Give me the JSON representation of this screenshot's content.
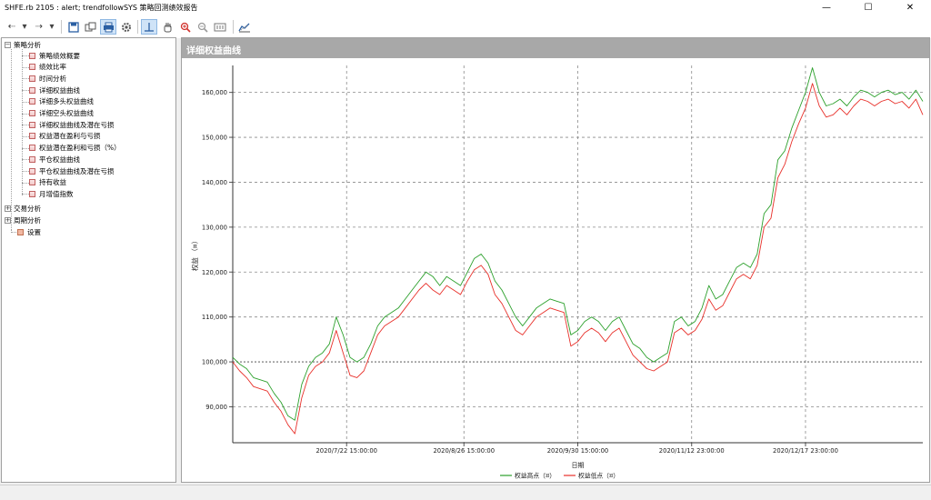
{
  "window": {
    "title": "SHFE.rb 2105 : alert; trendfollowSYS 策略回测绩效报告",
    "minimize_glyph": "—",
    "maximize_glyph": "☐",
    "close_glyph": "✕"
  },
  "toolbar": {
    "back_glyph": "⇠",
    "forward_glyph": "⇢",
    "dropdown_glyph": "▾"
  },
  "tree": {
    "root_label": "策略分析",
    "children": [
      {
        "label": "策略绩效概要"
      },
      {
        "label": "绩效比率"
      },
      {
        "label": "时间分析"
      },
      {
        "label": "详细权益曲线"
      },
      {
        "label": "详细多头权益曲线"
      },
      {
        "label": "详细空头权益曲线"
      },
      {
        "label": "详细权益曲线及潜在亏损"
      },
      {
        "label": "权益潜在盈利与亏损"
      },
      {
        "label": "权益潜在盈利和亏损（%）"
      },
      {
        "label": "平仓权益曲线"
      },
      {
        "label": "平仓权益曲线及潜在亏损"
      },
      {
        "label": "持有收益"
      },
      {
        "label": "月增值指数"
      }
    ],
    "trade_label": "交易分析",
    "period_label": "周期分析",
    "settings_label": "设置"
  },
  "panel": {
    "title": "详细权益曲线"
  },
  "chart_data": {
    "type": "line",
    "title": "",
    "xlabel": "日期",
    "ylabel": "权益 （¤）",
    "ylim": [
      82000,
      166000
    ],
    "yticks": [
      90000,
      100000,
      110000,
      120000,
      130000,
      140000,
      150000,
      160000
    ],
    "ytick_labels": [
      "90,000",
      "100,000",
      "110,000",
      "120,000",
      "130,000",
      "140,000",
      "150,000",
      "160,000"
    ],
    "xlim": [
      0,
      1
    ],
    "xtick_labels": [
      "2020/7/22 15:00:00",
      "2020/8/26 15:00:00",
      "2020/9/30 15:00:00",
      "2020/11/12 23:00:00",
      "2020/12/17 23:00:00"
    ],
    "grid": true,
    "legend": "bottom",
    "series": [
      {
        "name": "权益高点（¤）",
        "color": "#2ca02c",
        "points": [
          [
            0.0,
            101000
          ],
          [
            0.01,
            99500
          ],
          [
            0.02,
            98500
          ],
          [
            0.03,
            96500
          ],
          [
            0.04,
            96000
          ],
          [
            0.05,
            95500
          ],
          [
            0.06,
            93000
          ],
          [
            0.07,
            91000
          ],
          [
            0.08,
            88000
          ],
          [
            0.09,
            87000
          ],
          [
            0.1,
            95000
          ],
          [
            0.11,
            99000
          ],
          [
            0.12,
            101000
          ],
          [
            0.13,
            102000
          ],
          [
            0.14,
            104000
          ],
          [
            0.15,
            110000
          ],
          [
            0.16,
            106000
          ],
          [
            0.17,
            101000
          ],
          [
            0.18,
            100000
          ],
          [
            0.19,
            101000
          ],
          [
            0.2,
            104000
          ],
          [
            0.21,
            108000
          ],
          [
            0.22,
            110000
          ],
          [
            0.23,
            111000
          ],
          [
            0.24,
            112000
          ],
          [
            0.25,
            114000
          ],
          [
            0.26,
            116000
          ],
          [
            0.27,
            118000
          ],
          [
            0.28,
            120000
          ],
          [
            0.29,
            119000
          ],
          [
            0.3,
            117000
          ],
          [
            0.31,
            119000
          ],
          [
            0.32,
            118000
          ],
          [
            0.33,
            117000
          ],
          [
            0.34,
            120000
          ],
          [
            0.35,
            123000
          ],
          [
            0.36,
            124000
          ],
          [
            0.37,
            122000
          ],
          [
            0.38,
            118000
          ],
          [
            0.39,
            116000
          ],
          [
            0.4,
            113000
          ],
          [
            0.41,
            110000
          ],
          [
            0.42,
            108000
          ],
          [
            0.43,
            110000
          ],
          [
            0.44,
            112000
          ],
          [
            0.45,
            113000
          ],
          [
            0.46,
            114000
          ],
          [
            0.47,
            113500
          ],
          [
            0.48,
            113000
          ],
          [
            0.49,
            106000
          ],
          [
            0.5,
            107000
          ],
          [
            0.51,
            109000
          ],
          [
            0.52,
            110000
          ],
          [
            0.53,
            109000
          ],
          [
            0.54,
            107000
          ],
          [
            0.55,
            109000
          ],
          [
            0.56,
            110000
          ],
          [
            0.57,
            107000
          ],
          [
            0.58,
            104000
          ],
          [
            0.59,
            103000
          ],
          [
            0.6,
            101000
          ],
          [
            0.61,
            100000
          ],
          [
            0.62,
            101000
          ],
          [
            0.63,
            102000
          ],
          [
            0.64,
            109000
          ],
          [
            0.65,
            110000
          ],
          [
            0.66,
            108000
          ],
          [
            0.67,
            109000
          ],
          [
            0.68,
            112000
          ],
          [
            0.69,
            117000
          ],
          [
            0.7,
            114000
          ],
          [
            0.71,
            115000
          ],
          [
            0.72,
            118000
          ],
          [
            0.73,
            121000
          ],
          [
            0.74,
            122000
          ],
          [
            0.75,
            121000
          ],
          [
            0.76,
            124000
          ],
          [
            0.77,
            133000
          ],
          [
            0.78,
            135000
          ],
          [
            0.79,
            145000
          ],
          [
            0.8,
            147000
          ],
          [
            0.81,
            152000
          ],
          [
            0.82,
            156000
          ],
          [
            0.83,
            160000
          ],
          [
            0.84,
            165500
          ],
          [
            0.85,
            160000
          ],
          [
            0.86,
            157000
          ],
          [
            0.87,
            157500
          ],
          [
            0.88,
            158500
          ],
          [
            0.89,
            157000
          ],
          [
            0.9,
            159000
          ],
          [
            0.91,
            160500
          ],
          [
            0.92,
            160000
          ],
          [
            0.93,
            159000
          ],
          [
            0.94,
            160000
          ],
          [
            0.95,
            160500
          ],
          [
            0.96,
            159500
          ],
          [
            0.97,
            160000
          ],
          [
            0.98,
            158500
          ],
          [
            0.99,
            160500
          ],
          [
            1.0,
            158000
          ]
        ]
      },
      {
        "name": "权益低点（¤）",
        "color": "#e8302a",
        "points": [
          [
            0.0,
            100000
          ],
          [
            0.01,
            98000
          ],
          [
            0.02,
            96500
          ],
          [
            0.03,
            94500
          ],
          [
            0.04,
            94000
          ],
          [
            0.05,
            93500
          ],
          [
            0.06,
            91000
          ],
          [
            0.07,
            89000
          ],
          [
            0.08,
            86000
          ],
          [
            0.09,
            84000
          ],
          [
            0.1,
            92000
          ],
          [
            0.11,
            97000
          ],
          [
            0.12,
            99000
          ],
          [
            0.13,
            100000
          ],
          [
            0.14,
            102000
          ],
          [
            0.15,
            107000
          ],
          [
            0.16,
            102000
          ],
          [
            0.17,
            97000
          ],
          [
            0.18,
            96500
          ],
          [
            0.19,
            98000
          ],
          [
            0.2,
            102000
          ],
          [
            0.21,
            106000
          ],
          [
            0.22,
            108000
          ],
          [
            0.23,
            109000
          ],
          [
            0.24,
            110000
          ],
          [
            0.25,
            112000
          ],
          [
            0.26,
            114000
          ],
          [
            0.27,
            116000
          ],
          [
            0.28,
            117500
          ],
          [
            0.29,
            116000
          ],
          [
            0.3,
            115000
          ],
          [
            0.31,
            117000
          ],
          [
            0.32,
            116000
          ],
          [
            0.33,
            115000
          ],
          [
            0.34,
            118000
          ],
          [
            0.35,
            120500
          ],
          [
            0.36,
            121500
          ],
          [
            0.37,
            119500
          ],
          [
            0.38,
            115000
          ],
          [
            0.39,
            113000
          ],
          [
            0.4,
            110000
          ],
          [
            0.41,
            107000
          ],
          [
            0.42,
            106000
          ],
          [
            0.43,
            108000
          ],
          [
            0.44,
            110000
          ],
          [
            0.45,
            111000
          ],
          [
            0.46,
            112000
          ],
          [
            0.47,
            111500
          ],
          [
            0.48,
            111000
          ],
          [
            0.49,
            103500
          ],
          [
            0.5,
            104500
          ],
          [
            0.51,
            106500
          ],
          [
            0.52,
            107500
          ],
          [
            0.53,
            106500
          ],
          [
            0.54,
            104500
          ],
          [
            0.55,
            106500
          ],
          [
            0.56,
            107500
          ],
          [
            0.57,
            104500
          ],
          [
            0.58,
            101500
          ],
          [
            0.59,
            100000
          ],
          [
            0.6,
            98500
          ],
          [
            0.61,
            98000
          ],
          [
            0.62,
            99000
          ],
          [
            0.63,
            100000
          ],
          [
            0.64,
            106500
          ],
          [
            0.65,
            107500
          ],
          [
            0.66,
            106000
          ],
          [
            0.67,
            107000
          ],
          [
            0.68,
            109500
          ],
          [
            0.69,
            114000
          ],
          [
            0.7,
            111500
          ],
          [
            0.71,
            112500
          ],
          [
            0.72,
            115500
          ],
          [
            0.73,
            118500
          ],
          [
            0.74,
            119500
          ],
          [
            0.75,
            118500
          ],
          [
            0.76,
            121500
          ],
          [
            0.77,
            130000
          ],
          [
            0.78,
            132000
          ],
          [
            0.79,
            141000
          ],
          [
            0.8,
            144000
          ],
          [
            0.81,
            149000
          ],
          [
            0.82,
            153000
          ],
          [
            0.83,
            156500
          ],
          [
            0.84,
            162000
          ],
          [
            0.85,
            157000
          ],
          [
            0.86,
            154500
          ],
          [
            0.87,
            155000
          ],
          [
            0.88,
            156500
          ],
          [
            0.89,
            155000
          ],
          [
            0.9,
            157000
          ],
          [
            0.91,
            158500
          ],
          [
            0.92,
            158000
          ],
          [
            0.93,
            157000
          ],
          [
            0.94,
            158000
          ],
          [
            0.95,
            158500
          ],
          [
            0.96,
            157500
          ],
          [
            0.97,
            158000
          ],
          [
            0.98,
            156500
          ],
          [
            0.99,
            158500
          ],
          [
            1.0,
            155000
          ]
        ]
      }
    ]
  }
}
